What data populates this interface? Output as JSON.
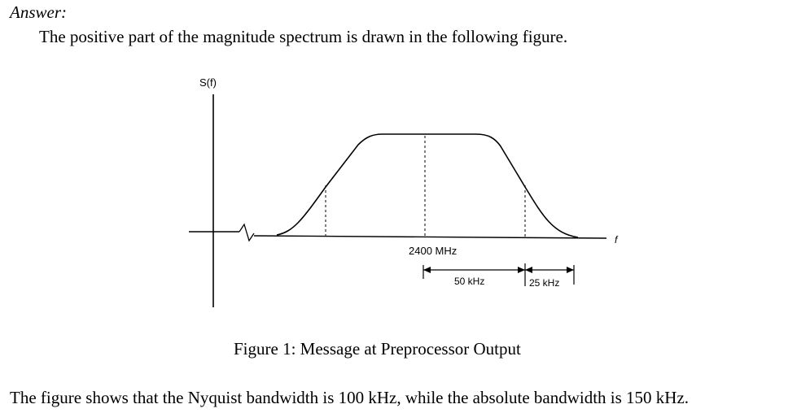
{
  "answer_label": "Answer:",
  "intro_text": "The positive part of the magnitude spectrum is drawn in the following figure.",
  "figure": {
    "y_axis_label": "S(f)",
    "x_axis_label": "f",
    "center_label": "2400 MHz",
    "passband_label": "50 kHz",
    "rolloff_label": "25 kHz"
  },
  "caption": "Figure 1: Message at Preprocessor Output",
  "conclusion_text": "The figure shows that the Nyquist bandwidth is 100 kHz, while the absolute bandwidth is 150 kHz."
}
